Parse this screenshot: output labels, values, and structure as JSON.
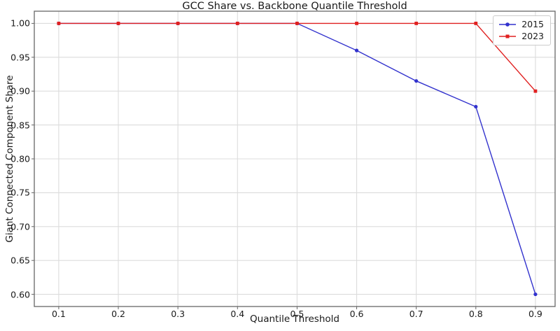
{
  "chart_data": {
    "type": "line",
    "title": "GCC Share vs. Backbone Quantile Threshold",
    "xlabel": "Quantile Threshold",
    "ylabel": "Giant Connected Component Share",
    "x": [
      0.1,
      0.2,
      0.3,
      0.4,
      0.5,
      0.6,
      0.7,
      0.8,
      0.9
    ],
    "series": [
      {
        "name": "2015",
        "color": "#3232cd",
        "marker": "circle",
        "values": [
          1.0,
          1.0,
          1.0,
          1.0,
          1.0,
          0.96,
          0.915,
          0.877,
          0.6
        ]
      },
      {
        "name": "2023",
        "color": "#e02020",
        "marker": "square",
        "values": [
          1.0,
          1.0,
          1.0,
          1.0,
          1.0,
          1.0,
          1.0,
          1.0,
          0.9
        ]
      }
    ],
    "xticks": {
      "values": [
        0.1,
        0.2,
        0.3,
        0.4,
        0.5,
        0.6,
        0.7,
        0.8,
        0.9
      ],
      "labels": [
        "0.1",
        "0.2",
        "0.3",
        "0.4",
        "0.5",
        "0.6",
        "0.7",
        "0.8",
        "0.9"
      ]
    },
    "yticks": {
      "values": [
        0.6,
        0.65,
        0.7,
        0.75,
        0.8,
        0.85,
        0.9,
        0.95,
        1.0
      ],
      "labels": [
        "0.60",
        "0.65",
        "0.70",
        "0.75",
        "0.80",
        "0.85",
        "0.90",
        "0.95",
        "1.00"
      ]
    },
    "xlim": [
      0.059,
      0.933
    ],
    "ylim": [
      0.582,
      1.018
    ],
    "grid": true,
    "legend": {
      "position": "upper right",
      "entries": [
        "2015",
        "2023"
      ]
    }
  },
  "colors": {
    "background": "#ffffff",
    "grid": "#dcdcdc",
    "spine": "#666666",
    "text": "#1a1a1a",
    "legend_border": "#cccccc",
    "series_2015": "#3232cd",
    "series_2023": "#e02020"
  }
}
